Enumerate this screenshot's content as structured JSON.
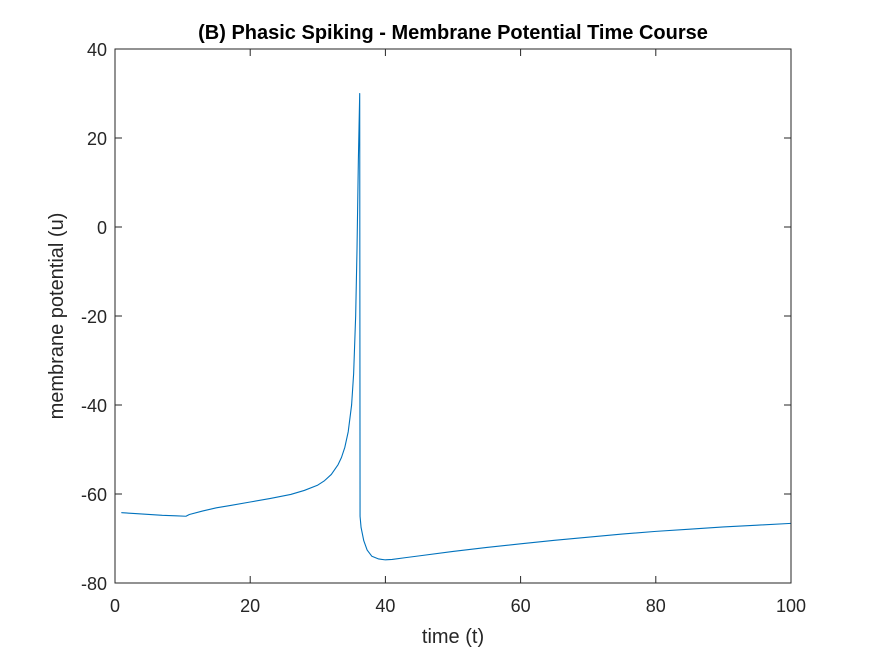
{
  "chart_data": {
    "type": "line",
    "title": "(B) Phasic Spiking - Membrane Potential Time Course",
    "xlabel": "time (t)",
    "ylabel": "membrane potential (u)",
    "xlim": [
      0,
      100
    ],
    "ylim": [
      -80,
      40
    ],
    "xticks": [
      0,
      20,
      40,
      60,
      80,
      100
    ],
    "yticks": [
      -80,
      -60,
      -40,
      -20,
      0,
      20,
      40
    ],
    "grid": false,
    "box": true,
    "line_color": "#0072BD",
    "axis_color": "#262626",
    "series": [
      {
        "x": [
          1,
          3,
          5,
          7,
          9,
          10.5,
          11,
          13,
          15,
          17,
          20,
          23,
          26,
          28,
          30,
          31,
          32,
          33,
          33.5,
          34,
          34.5,
          35,
          35.3,
          35.6,
          35.8,
          36,
          36.2,
          36.25,
          36.4,
          36.8,
          37.3,
          38,
          39,
          40,
          41,
          43,
          45,
          50,
          55,
          60,
          65,
          70,
          75,
          80,
          85,
          90,
          95,
          100
        ],
        "y": [
          -64.2,
          -64.4,
          -64.6,
          -64.8,
          -64.9,
          -65.0,
          -64.6,
          -63.8,
          -63.1,
          -62.6,
          -61.8,
          -61.0,
          -60.1,
          -59.2,
          -58.0,
          -57.0,
          -55.6,
          -53.4,
          -51.8,
          -49.5,
          -46.0,
          -40.0,
          -33.0,
          -20.0,
          -5.0,
          15.0,
          30.0,
          -65.0,
          -67.5,
          -70.5,
          -72.6,
          -74.0,
          -74.6,
          -74.8,
          -74.7,
          -74.3,
          -73.9,
          -72.9,
          -72.0,
          -71.2,
          -70.4,
          -69.7,
          -69.0,
          -68.4,
          -67.9,
          -67.4,
          -67.0,
          -66.6
        ]
      }
    ]
  }
}
